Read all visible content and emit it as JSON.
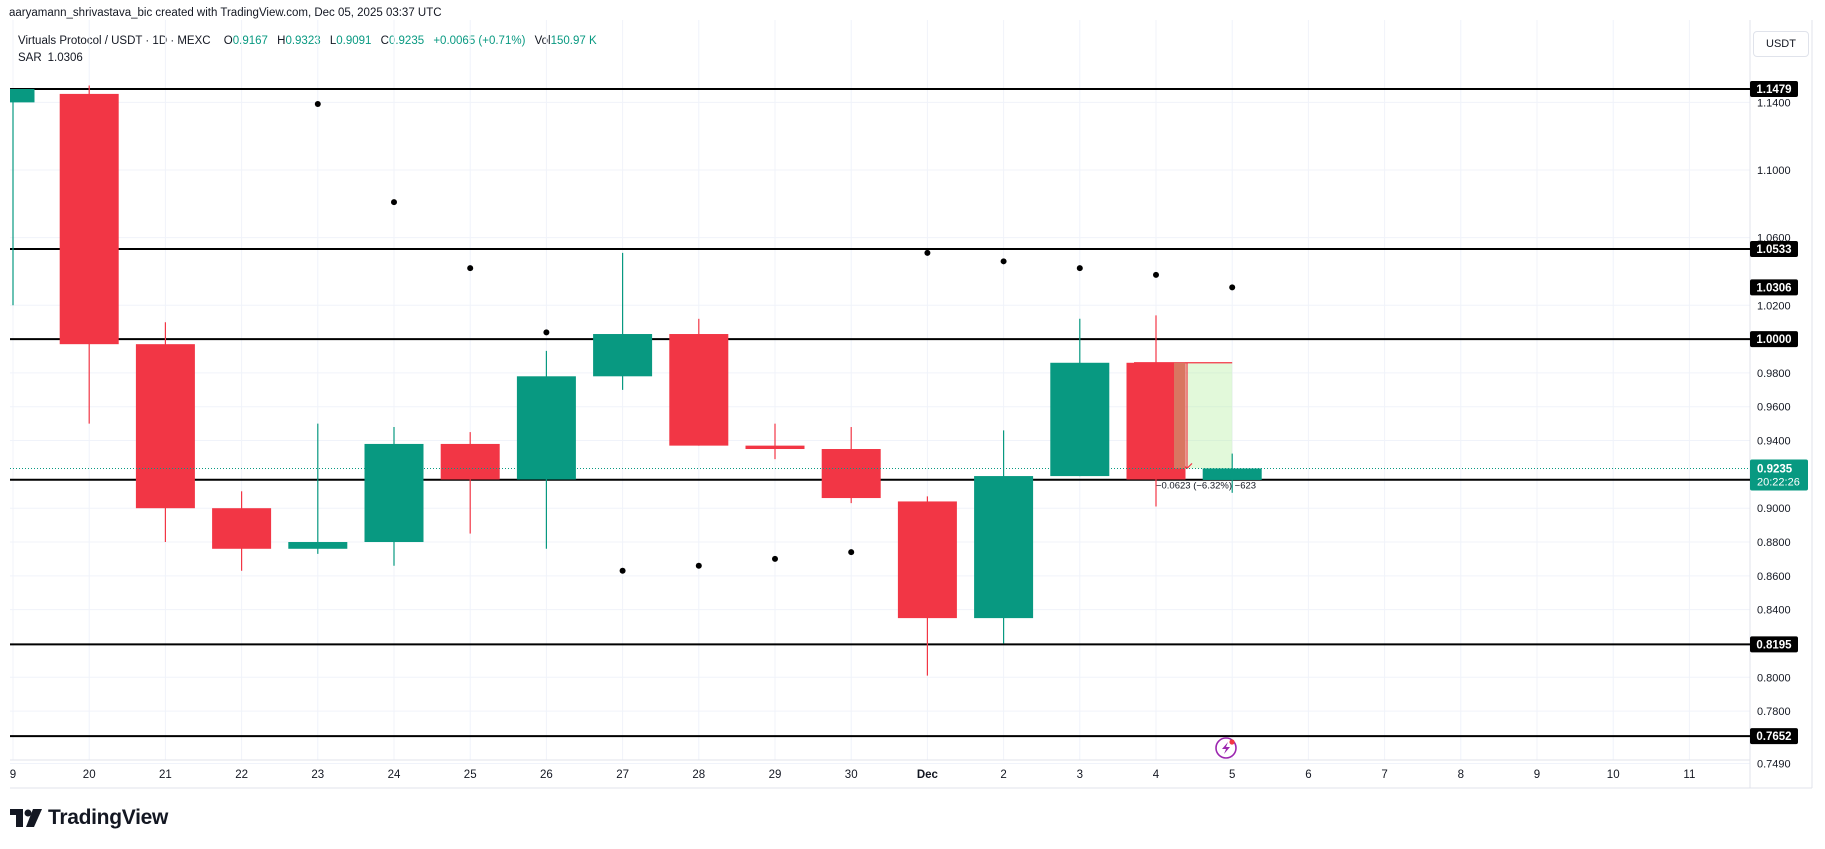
{
  "credit": "aaryamann_shrivastava_bic created with TradingView.com, Dec 05, 2025 03:37 UTC",
  "legend": {
    "symbol": "Virtuals Protocol / USDT · 1D · MEXC",
    "open_label": "O",
    "open": "0.9167",
    "high_label": "H",
    "high": "0.9323",
    "low_label": "L",
    "low": "0.9091",
    "close_label": "C",
    "close": "0.9235",
    "change": "+0.0065 (+0.71%)",
    "vol_label": "Vol",
    "vol": "150.97 K",
    "sar_label": "SAR",
    "sar": "1.0306"
  },
  "currency": "USDT",
  "brand": "TradingView",
  "colors": {
    "up": "#089981",
    "down": "#f23645",
    "sar": "#000000",
    "level": "#000000",
    "grid": "#f0f3fa"
  },
  "chart_data": {
    "type": "candlestick",
    "y_axis_ticks": [
      "0.7490",
      "0.7800",
      "0.8000",
      "0.8400",
      "0.8600",
      "0.8800",
      "0.9000",
      "0.9400",
      "0.9600",
      "0.9800",
      "1.0200",
      "1.0600",
      "1.1000",
      "1.1400"
    ],
    "x_axis_labels": [
      "9",
      "20",
      "21",
      "22",
      "23",
      "24",
      "25",
      "26",
      "27",
      "28",
      "29",
      "30",
      "Dec",
      "2",
      "3",
      "4",
      "5",
      "6",
      "7",
      "8",
      "9",
      "10",
      "11"
    ],
    "candles": [
      {
        "date": "19",
        "open": 1.14,
        "high": 1.1479,
        "low": 1.02,
        "close": 1.1479
      },
      {
        "date": "20",
        "open": 1.145,
        "high": 1.15,
        "low": 0.95,
        "close": 0.997
      },
      {
        "date": "21",
        "open": 0.997,
        "high": 1.01,
        "low": 0.88,
        "close": 0.9
      },
      {
        "date": "22",
        "open": 0.9,
        "high": 0.91,
        "low": 0.863,
        "close": 0.876
      },
      {
        "date": "23",
        "open": 0.876,
        "high": 0.95,
        "low": 0.873,
        "close": 0.88
      },
      {
        "date": "24",
        "open": 0.88,
        "high": 0.948,
        "low": 0.866,
        "close": 0.938
      },
      {
        "date": "25",
        "open": 0.938,
        "high": 0.945,
        "low": 0.885,
        "close": 0.917
      },
      {
        "date": "26",
        "open": 0.917,
        "high": 0.993,
        "low": 0.876,
        "close": 0.978
      },
      {
        "date": "27",
        "open": 0.978,
        "high": 1.051,
        "low": 0.97,
        "close": 1.003
      },
      {
        "date": "28",
        "open": 1.003,
        "high": 1.012,
        "low": 0.937,
        "close": 0.937
      },
      {
        "date": "29",
        "open": 0.937,
        "high": 0.95,
        "low": 0.929,
        "close": 0.935
      },
      {
        "date": "30",
        "open": 0.935,
        "high": 0.948,
        "low": 0.903,
        "close": 0.906
      },
      {
        "date": "Dec",
        "open": 0.904,
        "high": 0.907,
        "low": 0.801,
        "close": 0.835
      },
      {
        "date": "2",
        "open": 0.835,
        "high": 0.946,
        "low": 0.82,
        "close": 0.919
      },
      {
        "date": "3",
        "open": 0.919,
        "high": 1.012,
        "low": 0.919,
        "close": 0.986
      },
      {
        "date": "4",
        "open": 0.986,
        "high": 1.014,
        "low": 0.901,
        "close": 0.917
      },
      {
        "date": "5",
        "open": 0.9167,
        "high": 0.9323,
        "low": 0.9091,
        "close": 0.9235
      }
    ],
    "sar_points": [
      {
        "date": "23",
        "value": 1.139
      },
      {
        "date": "24",
        "value": 1.081
      },
      {
        "date": "25",
        "value": 1.042
      },
      {
        "date": "26",
        "value": 1.004
      },
      {
        "date": "27",
        "value": 0.863
      },
      {
        "date": "28",
        "value": 0.866
      },
      {
        "date": "29",
        "value": 0.87
      },
      {
        "date": "30",
        "value": 0.874
      },
      {
        "date": "Dec",
        "value": 1.051
      },
      {
        "date": "2",
        "value": 1.046
      },
      {
        "date": "3",
        "value": 1.042
      },
      {
        "date": "4",
        "value": 1.038
      },
      {
        "date": "5",
        "value": 1.0306
      }
    ],
    "horizontal_levels": [
      "1.1479",
      "1.0533",
      "1.0000",
      "0.9168",
      "0.8195",
      "0.7652"
    ],
    "price_labels": {
      "sar": "1.0306",
      "last": "0.9235",
      "countdown": "20:22:26"
    },
    "measure": {
      "from": 0.986,
      "to": 0.9235,
      "label": "−0.0623 (−6.32%) −623"
    }
  }
}
